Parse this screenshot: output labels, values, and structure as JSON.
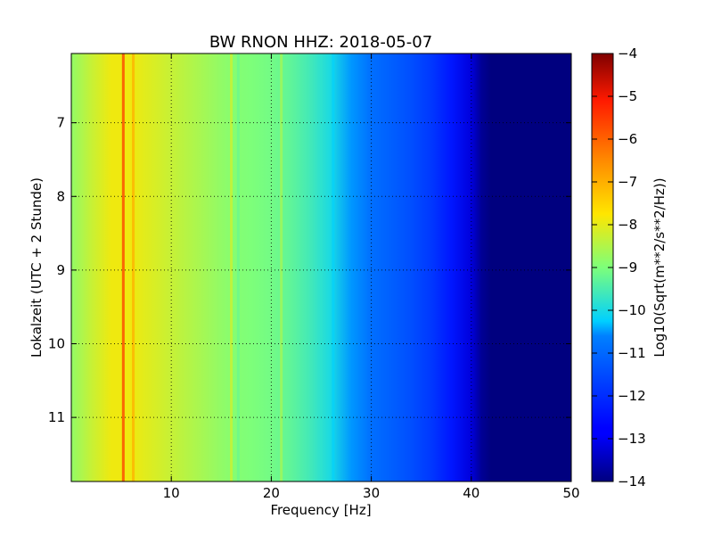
{
  "chart_data": {
    "type": "heatmap",
    "title": "BW RNON HHZ: 2018-05-07",
    "xlabel": "Frequency [Hz]",
    "ylabel": "Lokalzeit (UTC + 2 Stunde)",
    "xlim": [
      0,
      50
    ],
    "ylim": [
      6.06,
      11.87
    ],
    "y_inverted": true,
    "x_ticks": [
      10,
      20,
      30,
      40,
      50
    ],
    "x_tick_labels": [
      "10",
      "20",
      "30",
      "40",
      "50"
    ],
    "y_ticks": [
      7,
      8,
      9,
      10,
      11
    ],
    "y_tick_labels": [
      "7",
      "8",
      "9",
      "10",
      "11"
    ],
    "grid": true,
    "colormap": "jet",
    "colorbar": {
      "label": "Log10(Sqrt(m**2/s**2/Hz))",
      "range": [
        -14,
        -4
      ],
      "ticks": [
        -4,
        -5,
        -6,
        -7,
        -8,
        -9,
        -10,
        -11,
        -12,
        -13,
        -14
      ],
      "tick_labels": [
        "−4",
        "−5",
        "−6",
        "−7",
        "−8",
        "−9",
        "−10",
        "−11",
        "−12",
        "−13",
        "−14"
      ]
    },
    "spectral_profile": {
      "frequency_hz": [
        0,
        2,
        4,
        6,
        8,
        10,
        12,
        14,
        16,
        18,
        20,
        22,
        24,
        26,
        28,
        30,
        32,
        34,
        36,
        38,
        40,
        41,
        42,
        50
      ],
      "value": [
        -8.8,
        -8.3,
        -7.9,
        -7.9,
        -8.1,
        -8.3,
        -8.5,
        -8.7,
        -8.9,
        -9.0,
        -9.1,
        -9.3,
        -9.6,
        -10.0,
        -10.5,
        -10.9,
        -11.2,
        -11.5,
        -11.9,
        -12.5,
        -13.2,
        -13.8,
        -14.0,
        -14.0
      ]
    },
    "line_features": [
      {
        "frequency_hz": 5.2,
        "value": -5.5
      },
      {
        "frequency_hz": 6.2,
        "value": -7.0
      },
      {
        "frequency_hz": 16.0,
        "value": -8.2
      },
      {
        "frequency_hz": 16.7,
        "value": -9.2
      },
      {
        "frequency_hz": 21.0,
        "value": -8.6
      },
      {
        "frequency_hz": 25.0,
        "value": -9.8
      },
      {
        "frequency_hz": 26.2,
        "value": -10.2
      }
    ]
  }
}
